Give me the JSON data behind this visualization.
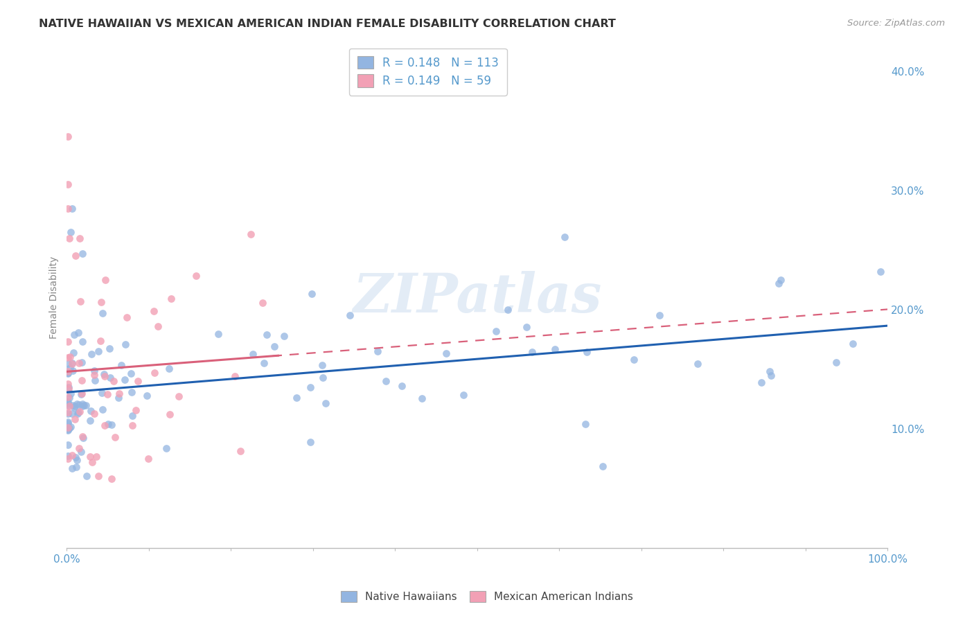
{
  "title": "NATIVE HAWAIIAN VS MEXICAN AMERICAN INDIAN FEMALE DISABILITY CORRELATION CHART",
  "source": "Source: ZipAtlas.com",
  "ylabel": "Female Disability",
  "xlim": [
    0.0,
    1.0
  ],
  "ylim": [
    0.0,
    0.42
  ],
  "nh_color": "#93b5e1",
  "mai_color": "#f2a0b5",
  "nh_line_color": "#2060b0",
  "mai_line_color": "#d9607a",
  "nh_R": 0.148,
  "nh_N": 113,
  "mai_R": 0.149,
  "mai_N": 59,
  "watermark": "ZIPatlas",
  "legend_nh": "Native Hawaiians",
  "legend_mai": "Mexican American Indians",
  "legend_nh_label": "R = 0.148   N = 113",
  "legend_mai_label": "R = 0.149   N = 59",
  "grid_color": "#dddddd",
  "tick_color": "#5599cc",
  "title_color": "#333333",
  "source_color": "#999999",
  "ylabel_color": "#888888"
}
